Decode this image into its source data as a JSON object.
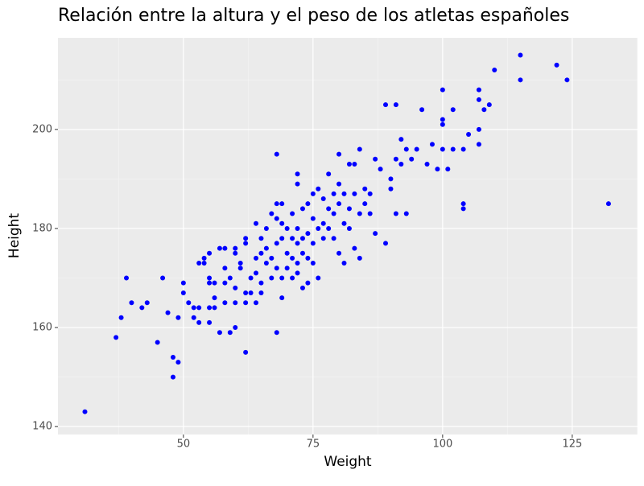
{
  "chart_data": {
    "type": "scatter",
    "title": "Relación entre la altura y el peso de los atletas españoles",
    "x_label": "Weight",
    "y_label": "Height",
    "color": "#0000ff",
    "xlim": [
      25.8,
      137.6
    ],
    "ylim": [
      138.4,
      218.5
    ],
    "xticks": [
      50,
      75,
      100,
      125
    ],
    "yticks": [
      140,
      160,
      180,
      200
    ],
    "grid": true,
    "x": [
      31,
      37,
      38,
      39,
      40,
      42,
      43,
      45,
      46,
      47,
      48,
      48,
      49,
      49,
      50,
      50,
      51,
      52,
      52,
      53,
      53,
      54,
      54,
      53,
      55,
      55,
      55,
      55,
      55,
      56,
      56,
      56,
      57,
      57,
      58,
      58,
      58,
      58,
      59,
      59,
      60,
      60,
      60,
      60,
      60,
      61,
      61,
      62,
      62,
      62,
      62,
      62,
      63,
      63,
      64,
      64,
      64,
      64,
      65,
      65,
      65,
      65,
      66,
      66,
      66,
      67,
      67,
      67,
      68,
      68,
      68,
      68,
      68,
      68,
      69,
      69,
      69,
      69,
      69,
      70,
      70,
      70,
      71,
      71,
      71,
      71,
      72,
      72,
      72,
      72,
      72,
      72,
      73,
      73,
      73,
      73,
      74,
      74,
      74,
      74,
      75,
      75,
      75,
      75,
      76,
      76,
      76,
      77,
      77,
      77,
      78,
      78,
      78,
      79,
      79,
      79,
      80,
      80,
      80,
      80,
      81,
      81,
      81,
      82,
      82,
      82,
      83,
      83,
      83,
      84,
      84,
      84,
      85,
      85,
      86,
      86,
      87,
      87,
      88,
      89,
      89,
      90,
      90,
      91,
      91,
      91,
      92,
      92,
      93,
      93,
      94,
      95,
      96,
      97,
      98,
      99,
      100,
      100,
      100,
      100,
      101,
      102,
      102,
      104,
      104,
      104,
      105,
      107,
      107,
      107,
      107,
      108,
      109,
      110,
      115,
      115,
      122,
      124,
      132
    ],
    "y": [
      143,
      158,
      162,
      170,
      165,
      164,
      165,
      157,
      170,
      163,
      154,
      150,
      153,
      162,
      169,
      167,
      165,
      162,
      164,
      164,
      173,
      173,
      174,
      161,
      175,
      170,
      169,
      164,
      161,
      169,
      164,
      166,
      176,
      159,
      176,
      172,
      169,
      165,
      170,
      159,
      160,
      165,
      168,
      176,
      175,
      173,
      172,
      178,
      177,
      155,
      167,
      165,
      167,
      170,
      171,
      174,
      181,
      165,
      178,
      175,
      169,
      167,
      180,
      173,
      176,
      170,
      174,
      183,
      182,
      195,
      159,
      172,
      177,
      185,
      185,
      181,
      178,
      170,
      166,
      180,
      175,
      172,
      183,
      178,
      174,
      170,
      189,
      191,
      180,
      177,
      173,
      171,
      184,
      178,
      175,
      168,
      185,
      179,
      174,
      169,
      187,
      182,
      177,
      173,
      188,
      180,
      170,
      186,
      181,
      178,
      191,
      184,
      180,
      187,
      183,
      178,
      195,
      189,
      185,
      175,
      187,
      181,
      173,
      193,
      184,
      180,
      193,
      187,
      176,
      196,
      183,
      174,
      188,
      185,
      187,
      183,
      194,
      179,
      192,
      205,
      177,
      190,
      188,
      205,
      183,
      194,
      198,
      193,
      183,
      196,
      194,
      196,
      204,
      193,
      197,
      192,
      208,
      202,
      201,
      196,
      192,
      204,
      196,
      185,
      184,
      196,
      199,
      200,
      208,
      206,
      197,
      204,
      205,
      212,
      215,
      210,
      213,
      210,
      185
    ]
  }
}
